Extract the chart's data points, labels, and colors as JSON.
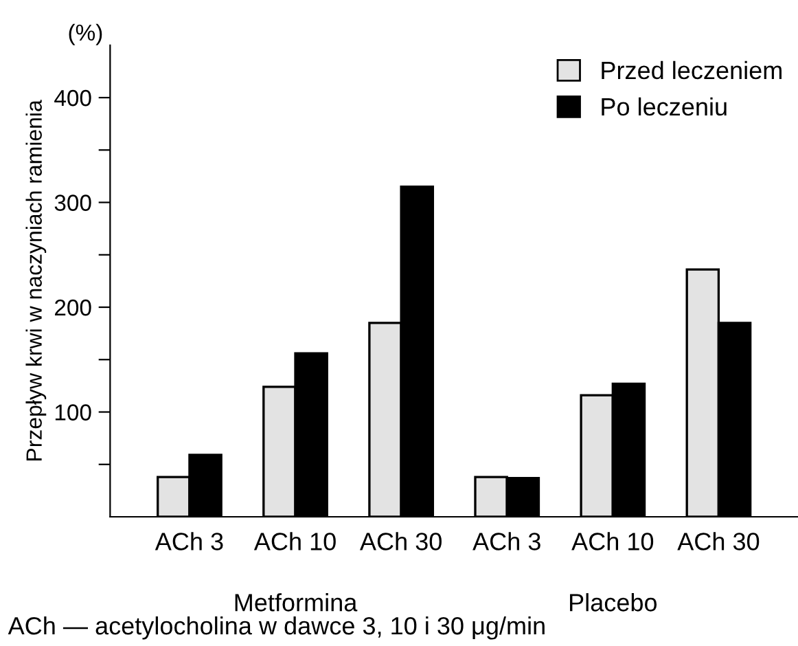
{
  "chart_data": {
    "type": "bar",
    "ylabel": "Przepływ krwi w naczyniach ramienia",
    "categories": [
      "ACh 3",
      "ACh 10",
      "ACh 30",
      "ACh 3",
      "ACh 10",
      "ACh 30"
    ],
    "series": [
      {
        "name": "Przed leczeniem",
        "color": "#e3e3e3",
        "values": [
          38,
          124,
          185,
          38,
          116,
          236
        ]
      },
      {
        "name": "Po leczeniu",
        "color": "#000000",
        "values": [
          59,
          156,
          315,
          37,
          127,
          185
        ]
      }
    ],
    "ylim": [
      0,
      450
    ],
    "yticks": [
      {
        "value": 50,
        "label": null
      },
      100,
      {
        "value": 150,
        "label": null
      },
      200,
      {
        "value": 250,
        "label": null
      },
      300,
      {
        "value": 350,
        "label": null
      },
      400
    ],
    "legend": "top right",
    "grid": false,
    "annotations": [
      "(%)",
      "Metformina",
      "Placebo",
      "ACh — acetylocholina w dawce 3, 10 i 30 μg/min"
    ]
  }
}
